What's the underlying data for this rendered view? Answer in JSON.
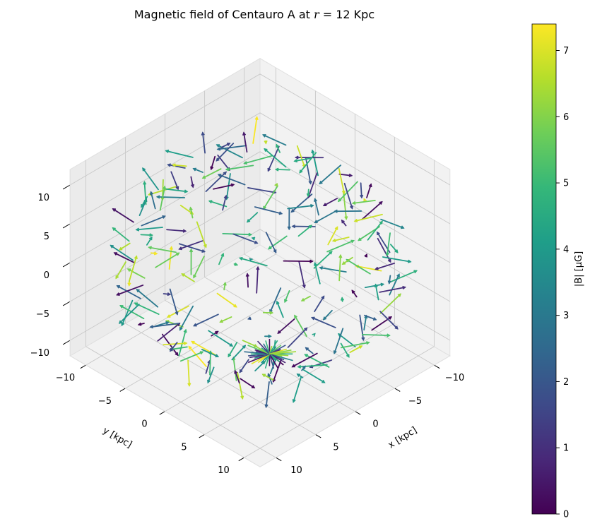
{
  "chart_data": {
    "type": "quiver3d",
    "title_prefix": "Magnetic field of Centauro A at ",
    "title_var": "r",
    "title_suffix": " = 12 Kpc",
    "xlabel": "x [kpc]",
    "ylabel": "y [kpc]",
    "zlabel": "",
    "xlim": [
      -12,
      12
    ],
    "ylim": [
      -12,
      12
    ],
    "zlim": [
      -12,
      12
    ],
    "x_ticks": [
      -10,
      -5,
      0,
      5,
      10
    ],
    "y_ticks": [
      -10,
      -5,
      0,
      5,
      10
    ],
    "z_ticks": [
      -10,
      -5,
      0,
      5,
      10
    ],
    "sphere_radius": 12,
    "grid": true,
    "colorbar": {
      "label": "|B| [μG]",
      "min": 0,
      "max": 7.4,
      "ticks": [
        0,
        1,
        2,
        3,
        4,
        5,
        6,
        7
      ],
      "colormap": "viridis"
    }
  },
  "colors": {
    "pane_back": "#ebebeb",
    "pane_side": "#f2f2f2",
    "pane_floor": "#f2f2f2",
    "grid": "#c8c8c8",
    "pane_edge": "#e0e0e0"
  }
}
